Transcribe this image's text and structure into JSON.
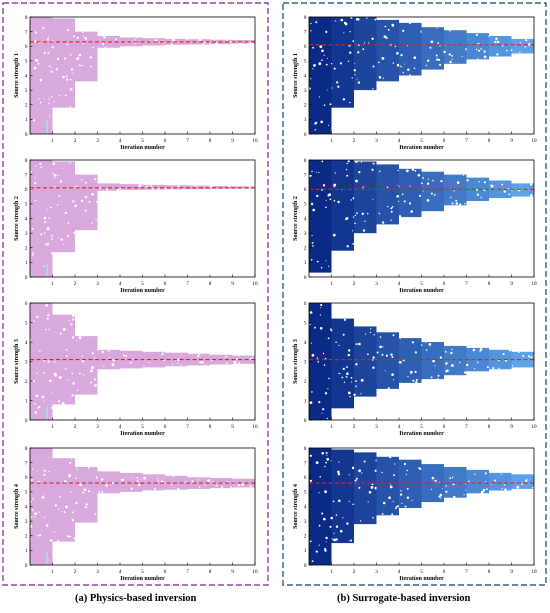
{
  "colors": {
    "physics_frame": "#8e3fb8",
    "surrogate_frame": "#355f8a",
    "physics_scatter": "#d9a8dc",
    "physics_scatter_alt": "#a7d8e8",
    "surrogate_scatter_dark": "#0a2a85",
    "surrogate_scatter_light": "#5ea2ea",
    "reference_line": "#e02020"
  },
  "captions": {
    "a": "(a)  Physics-based inversion",
    "b": "(b)  Surrogate-based inversion"
  },
  "chart_data": [
    {
      "type": "scatter",
      "panel": "a",
      "xlabel": "Iteration number",
      "ylabel": "Source strength 1",
      "xlim": [
        0,
        10
      ],
      "ylim": [
        0,
        8
      ],
      "x_ticks": [
        1,
        2,
        3,
        4,
        5,
        6,
        7,
        8,
        9,
        10
      ],
      "y_ticks": [
        0,
        1,
        2,
        3,
        4,
        5,
        6,
        7,
        8
      ],
      "reference_y": 6.3,
      "iterations": [
        {
          "x": [
            0,
            1
          ],
          "y": [
            0,
            8
          ]
        },
        {
          "x": [
            1,
            2
          ],
          "y": [
            1.8,
            7.9
          ]
        },
        {
          "x": [
            2,
            3
          ],
          "y": [
            3.6,
            7.0
          ]
        },
        {
          "x": [
            3,
            4
          ],
          "y": [
            5.9,
            6.7
          ]
        },
        {
          "x": [
            4,
            5
          ],
          "y": [
            6.0,
            6.6
          ]
        },
        {
          "x": [
            5,
            6
          ],
          "y": [
            6.05,
            6.55
          ]
        },
        {
          "x": [
            6,
            7
          ],
          "y": [
            6.1,
            6.5
          ]
        },
        {
          "x": [
            7,
            8
          ],
          "y": [
            6.12,
            6.48
          ]
        },
        {
          "x": [
            8,
            9
          ],
          "y": [
            6.15,
            6.45
          ]
        },
        {
          "x": [
            9,
            10
          ],
          "y": [
            6.18,
            6.42
          ]
        }
      ]
    },
    {
      "type": "scatter",
      "panel": "a",
      "xlabel": "Iteration number",
      "ylabel": "Source strength 2",
      "xlim": [
        0,
        10
      ],
      "ylim": [
        0,
        8
      ],
      "x_ticks": [
        1,
        2,
        3,
        4,
        5,
        6,
        7,
        8,
        9,
        10
      ],
      "y_ticks": [
        0,
        1,
        2,
        3,
        4,
        5,
        6,
        7,
        8
      ],
      "reference_y": 6.1,
      "iterations": [
        {
          "x": [
            0,
            1
          ],
          "y": [
            0,
            8
          ]
        },
        {
          "x": [
            1,
            2
          ],
          "y": [
            1.7,
            7.9
          ]
        },
        {
          "x": [
            2,
            3
          ],
          "y": [
            3.2,
            7.0
          ]
        },
        {
          "x": [
            3,
            4
          ],
          "y": [
            5.9,
            6.4
          ]
        },
        {
          "x": [
            4,
            5
          ],
          "y": [
            5.95,
            6.35
          ]
        },
        {
          "x": [
            5,
            6
          ],
          "y": [
            5.97,
            6.3
          ]
        },
        {
          "x": [
            6,
            7
          ],
          "y": [
            6.0,
            6.28
          ]
        },
        {
          "x": [
            7,
            8
          ],
          "y": [
            6.0,
            6.25
          ]
        },
        {
          "x": [
            8,
            9
          ],
          "y": [
            6.02,
            6.22
          ]
        },
        {
          "x": [
            9,
            10
          ],
          "y": [
            6.03,
            6.2
          ]
        }
      ]
    },
    {
      "type": "scatter",
      "panel": "a",
      "xlabel": "Iteration number",
      "ylabel": "Source strength 3",
      "xlim": [
        0,
        10
      ],
      "ylim": [
        0,
        6
      ],
      "x_ticks": [
        1,
        2,
        3,
        4,
        5,
        6,
        7,
        8,
        9,
        10
      ],
      "y_ticks": [
        0,
        1,
        2,
        3,
        4,
        5,
        6
      ],
      "reference_y": 3.1,
      "iterations": [
        {
          "x": [
            0,
            1
          ],
          "y": [
            0,
            6
          ]
        },
        {
          "x": [
            1,
            2
          ],
          "y": [
            0.8,
            5.4
          ]
        },
        {
          "x": [
            2,
            3
          ],
          "y": [
            1.3,
            4.3
          ]
        },
        {
          "x": [
            3,
            4
          ],
          "y": [
            2.6,
            3.6
          ]
        },
        {
          "x": [
            4,
            5
          ],
          "y": [
            2.65,
            3.55
          ]
        },
        {
          "x": [
            5,
            6
          ],
          "y": [
            2.7,
            3.5
          ]
        },
        {
          "x": [
            6,
            7
          ],
          "y": [
            2.75,
            3.45
          ]
        },
        {
          "x": [
            7,
            8
          ],
          "y": [
            2.8,
            3.4
          ]
        },
        {
          "x": [
            8,
            9
          ],
          "y": [
            2.85,
            3.35
          ]
        },
        {
          "x": [
            9,
            10
          ],
          "y": [
            2.88,
            3.3
          ]
        }
      ]
    },
    {
      "type": "scatter",
      "panel": "a",
      "xlabel": "Iteration number",
      "ylabel": "Source strength 4",
      "xlim": [
        0,
        10
      ],
      "ylim": [
        0,
        8
      ],
      "x_ticks": [
        1,
        2,
        3,
        4,
        5,
        6,
        7,
        8,
        9,
        10
      ],
      "y_ticks": [
        0,
        1,
        2,
        3,
        4,
        5,
        6,
        7,
        8
      ],
      "reference_y": 5.6,
      "iterations": [
        {
          "x": [
            0,
            1
          ],
          "y": [
            0,
            8
          ]
        },
        {
          "x": [
            1,
            2
          ],
          "y": [
            1.6,
            7.3
          ]
        },
        {
          "x": [
            2,
            3
          ],
          "y": [
            2.9,
            6.7
          ]
        },
        {
          "x": [
            3,
            4
          ],
          "y": [
            4.9,
            6.4
          ]
        },
        {
          "x": [
            4,
            5
          ],
          "y": [
            5.0,
            6.3
          ]
        },
        {
          "x": [
            5,
            6
          ],
          "y": [
            5.1,
            6.2
          ]
        },
        {
          "x": [
            6,
            7
          ],
          "y": [
            5.15,
            6.1
          ]
        },
        {
          "x": [
            7,
            8
          ],
          "y": [
            5.2,
            6.0
          ]
        },
        {
          "x": [
            8,
            9
          ],
          "y": [
            5.25,
            5.95
          ]
        },
        {
          "x": [
            9,
            10
          ],
          "y": [
            5.3,
            5.9
          ]
        }
      ]
    },
    {
      "type": "scatter",
      "panel": "b",
      "xlabel": "Iteration number",
      "ylabel": "Source strength 1",
      "xlim": [
        0,
        10
      ],
      "ylim": [
        0,
        8
      ],
      "x_ticks": [
        1,
        2,
        3,
        4,
        5,
        6,
        7,
        8,
        9,
        10
      ],
      "y_ticks": [
        0,
        1,
        2,
        3,
        4,
        5,
        6,
        7,
        8
      ],
      "reference_y": 6.1,
      "iterations": [
        {
          "x": [
            0,
            1
          ],
          "y": [
            0,
            8
          ]
        },
        {
          "x": [
            1,
            2
          ],
          "y": [
            1.8,
            8
          ]
        },
        {
          "x": [
            2,
            3
          ],
          "y": [
            3.0,
            8
          ]
        },
        {
          "x": [
            3,
            4
          ],
          "y": [
            3.6,
            7.8
          ]
        },
        {
          "x": [
            4,
            5
          ],
          "y": [
            4.0,
            7.6
          ]
        },
        {
          "x": [
            5,
            6
          ],
          "y": [
            4.4,
            7.3
          ]
        },
        {
          "x": [
            6,
            7
          ],
          "y": [
            4.8,
            7.1
          ]
        },
        {
          "x": [
            7,
            8
          ],
          "y": [
            5.1,
            6.9
          ]
        },
        {
          "x": [
            8,
            9
          ],
          "y": [
            5.3,
            6.7
          ]
        },
        {
          "x": [
            9,
            10
          ],
          "y": [
            5.5,
            6.5
          ]
        }
      ]
    },
    {
      "type": "scatter",
      "panel": "b",
      "xlabel": "Iteration number",
      "ylabel": "Source strength 2",
      "xlim": [
        0,
        10
      ],
      "ylim": [
        0,
        8
      ],
      "x_ticks": [
        1,
        2,
        3,
        4,
        5,
        6,
        7,
        8,
        9,
        10
      ],
      "y_ticks": [
        0,
        1,
        2,
        3,
        4,
        5,
        6,
        7,
        8
      ],
      "reference_y": 6.0,
      "iterations": [
        {
          "x": [
            0,
            1
          ],
          "y": [
            0.3,
            8
          ]
        },
        {
          "x": [
            1,
            2
          ],
          "y": [
            1.8,
            8
          ]
        },
        {
          "x": [
            2,
            3
          ],
          "y": [
            3.0,
            7.9
          ]
        },
        {
          "x": [
            3,
            4
          ],
          "y": [
            3.6,
            7.7
          ]
        },
        {
          "x": [
            4,
            5
          ],
          "y": [
            4.1,
            7.4
          ]
        },
        {
          "x": [
            5,
            6
          ],
          "y": [
            4.5,
            7.2
          ]
        },
        {
          "x": [
            6,
            7
          ],
          "y": [
            4.9,
            7.0
          ]
        },
        {
          "x": [
            7,
            8
          ],
          "y": [
            5.2,
            6.8
          ]
        },
        {
          "x": [
            8,
            9
          ],
          "y": [
            5.4,
            6.6
          ]
        },
        {
          "x": [
            9,
            10
          ],
          "y": [
            5.5,
            6.4
          ]
        }
      ]
    },
    {
      "type": "scatter",
      "panel": "b",
      "xlabel": "Iteration number",
      "ylabel": "Source strength 3",
      "xlim": [
        0,
        10
      ],
      "ylim": [
        0,
        6
      ],
      "x_ticks": [
        1,
        2,
        3,
        4,
        5,
        6,
        7,
        8,
        9,
        10
      ],
      "y_ticks": [
        0,
        1,
        2,
        3,
        4,
        5,
        6
      ],
      "reference_y": 3.1,
      "iterations": [
        {
          "x": [
            0,
            1
          ],
          "y": [
            0,
            6
          ]
        },
        {
          "x": [
            1,
            2
          ],
          "y": [
            0.6,
            5.2
          ]
        },
        {
          "x": [
            2,
            3
          ],
          "y": [
            1.2,
            4.8
          ]
        },
        {
          "x": [
            3,
            4
          ],
          "y": [
            1.6,
            4.5
          ]
        },
        {
          "x": [
            4,
            5
          ],
          "y": [
            1.9,
            4.2
          ]
        },
        {
          "x": [
            5,
            6
          ],
          "y": [
            2.1,
            4.0
          ]
        },
        {
          "x": [
            6,
            7
          ],
          "y": [
            2.3,
            3.8
          ]
        },
        {
          "x": [
            7,
            8
          ],
          "y": [
            2.5,
            3.7
          ]
        },
        {
          "x": [
            8,
            9
          ],
          "y": [
            2.6,
            3.6
          ]
        },
        {
          "x": [
            9,
            10
          ],
          "y": [
            2.7,
            3.5
          ]
        }
      ]
    },
    {
      "type": "scatter",
      "panel": "b",
      "xlabel": "Iteration number",
      "ylabel": "Source strength 4",
      "xlim": [
        0,
        10
      ],
      "ylim": [
        0,
        8
      ],
      "x_ticks": [
        1,
        2,
        3,
        4,
        5,
        6,
        7,
        8,
        9,
        10
      ],
      "y_ticks": [
        0,
        1,
        2,
        3,
        4,
        5,
        6,
        7,
        8
      ],
      "reference_y": 5.6,
      "iterations": [
        {
          "x": [
            0,
            1
          ],
          "y": [
            0,
            8
          ]
        },
        {
          "x": [
            1,
            2
          ],
          "y": [
            1.5,
            7.9
          ]
        },
        {
          "x": [
            2,
            3
          ],
          "y": [
            2.8,
            7.7
          ]
        },
        {
          "x": [
            3,
            4
          ],
          "y": [
            3.4,
            7.4
          ]
        },
        {
          "x": [
            4,
            5
          ],
          "y": [
            3.9,
            7.2
          ]
        },
        {
          "x": [
            5,
            6
          ],
          "y": [
            4.3,
            6.9
          ]
        },
        {
          "x": [
            6,
            7
          ],
          "y": [
            4.6,
            6.7
          ]
        },
        {
          "x": [
            7,
            8
          ],
          "y": [
            4.9,
            6.5
          ]
        },
        {
          "x": [
            8,
            9
          ],
          "y": [
            5.1,
            6.3
          ]
        },
        {
          "x": [
            9,
            10
          ],
          "y": [
            5.2,
            6.2
          ]
        }
      ]
    }
  ]
}
